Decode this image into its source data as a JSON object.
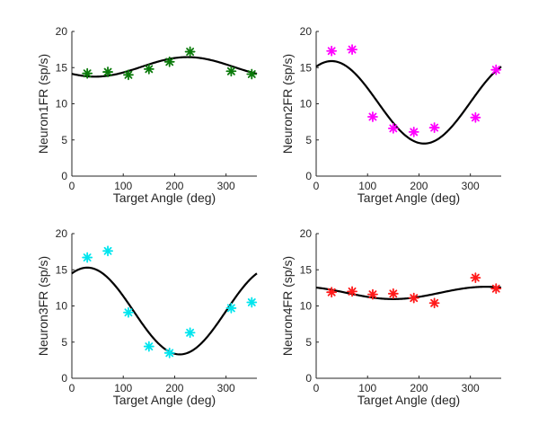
{
  "chart_data": [
    {
      "type": "scatter",
      "xlabel": "Target Angle (deg)",
      "ylabel": "Neuron1FR (sp/s)",
      "xlim": [
        0,
        360
      ],
      "ylim": [
        0,
        20
      ],
      "xticks": [
        "0",
        "100",
        "200",
        "300"
      ],
      "yticks": [
        "0",
        "5",
        "10",
        "15",
        "20"
      ],
      "marker_color": "#0a7a0a",
      "points": {
        "x": [
          30,
          70,
          110,
          150,
          190,
          230,
          310,
          350
        ],
        "y": [
          14.2,
          14.4,
          14.0,
          14.8,
          15.8,
          17.2,
          14.5,
          14.1
        ]
      },
      "fit": {
        "baseline": 15.1,
        "amplitude": 1.35,
        "preferred_direction": 225
      }
    },
    {
      "type": "scatter",
      "xlabel": "Target Angle (deg)",
      "ylabel": "Neuron2FR (sp/s)",
      "xlim": [
        0,
        360
      ],
      "ylim": [
        0,
        20
      ],
      "xticks": [
        "0",
        "100",
        "200",
        "300"
      ],
      "yticks": [
        "0",
        "5",
        "10",
        "15",
        "20"
      ],
      "marker_color": "#ff00ff",
      "points": {
        "x": [
          30,
          70,
          110,
          150,
          190,
          230,
          310,
          350
        ],
        "y": [
          17.3,
          17.5,
          8.2,
          6.6,
          6.1,
          6.7,
          8.1,
          14.7
        ]
      },
      "fit": {
        "baseline": 10.2,
        "amplitude": 5.7,
        "preferred_direction": 30
      }
    },
    {
      "type": "scatter",
      "xlabel": "Target Angle (deg)",
      "ylabel": "Neuron3FR (sp/s)",
      "xlim": [
        0,
        360
      ],
      "ylim": [
        0,
        20
      ],
      "xticks": [
        "0",
        "100",
        "200",
        "300"
      ],
      "yticks": [
        "0",
        "5",
        "10",
        "15",
        "20"
      ],
      "marker_color": "#00e5ee",
      "points": {
        "x": [
          30,
          70,
          110,
          150,
          190,
          230,
          310,
          350
        ],
        "y": [
          16.7,
          17.6,
          9.1,
          4.4,
          3.5,
          6.3,
          9.7,
          10.5
        ]
      },
      "fit": {
        "baseline": 9.3,
        "amplitude": 6.0,
        "preferred_direction": 30
      }
    },
    {
      "type": "scatter",
      "xlabel": "Target Angle (deg)",
      "ylabel": "Neuron4FR (sp/s)",
      "xlim": [
        0,
        360
      ],
      "ylim": [
        0,
        20
      ],
      "xticks": [
        "0",
        "100",
        "200",
        "300"
      ],
      "yticks": [
        "0",
        "5",
        "10",
        "15",
        "20"
      ],
      "marker_color": "#ff1a1a",
      "points": {
        "x": [
          30,
          70,
          110,
          150,
          190,
          230,
          310,
          350
        ],
        "y": [
          11.9,
          12.0,
          11.6,
          11.7,
          11.1,
          10.4,
          13.9,
          12.4
        ]
      },
      "fit": {
        "baseline": 11.8,
        "amplitude": 0.85,
        "preferred_direction": 330
      }
    }
  ]
}
